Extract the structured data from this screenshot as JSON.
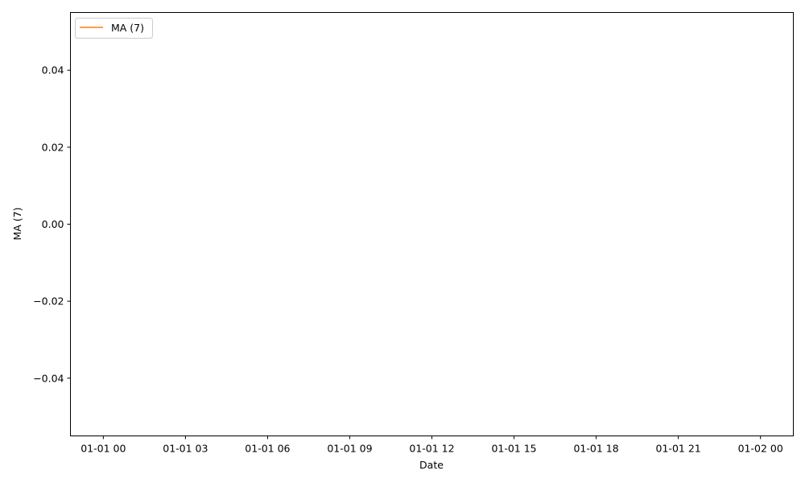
{
  "chart_data": {
    "type": "line",
    "title": "",
    "xlabel": "Date",
    "ylabel": "MA (7)",
    "series": [
      {
        "name": "MA (7)",
        "color": "#ff7f0e",
        "x": [],
        "y": []
      }
    ],
    "xlim_hours": [
      -1.2,
      25.2
    ],
    "ylim": [
      -0.055,
      0.055
    ],
    "x_ticks": [
      0,
      3,
      6,
      9,
      12,
      15,
      18,
      21,
      24
    ],
    "x_tick_labels": [
      "01-01 00",
      "01-01 03",
      "01-01 06",
      "01-01 09",
      "01-01 12",
      "01-01 15",
      "01-01 18",
      "01-01 21",
      "01-02 00"
    ],
    "y_ticks": [
      0.04,
      0.02,
      0.0,
      -0.02,
      -0.04
    ],
    "y_tick_labels": [
      "0.04",
      "0.02",
      "0.00",
      "−0.02",
      "−0.04"
    ],
    "grid": false,
    "legend_position": "top-left"
  }
}
